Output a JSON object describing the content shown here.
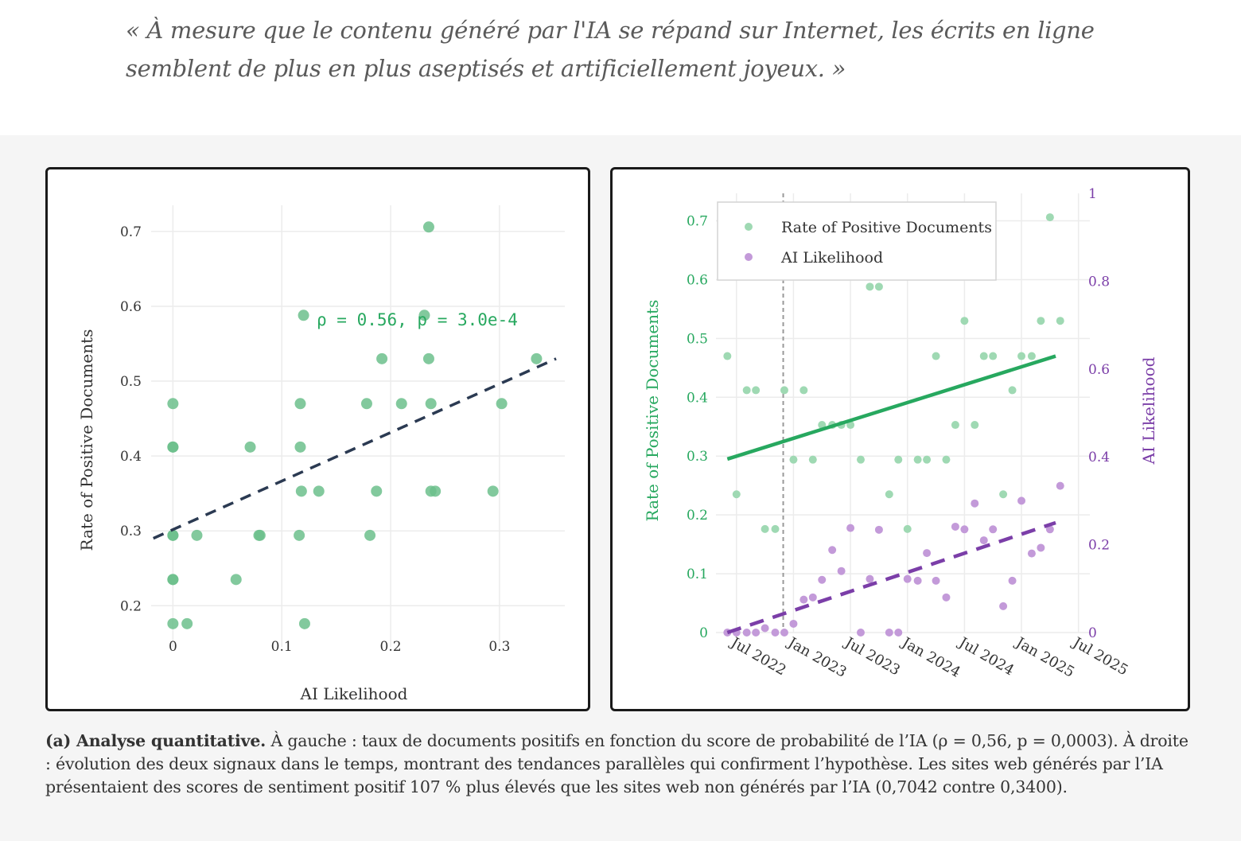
{
  "quote": "« À mesure que le contenu généré par l'IA se répand sur Internet, les écrits en ligne semblent de plus en plus aseptisés et artificiellement joyeux. »",
  "caption": {
    "label": "(a) Analyse quantitative.",
    "text": " À gauche : taux de documents positifs en fonction du score de probabilité de l’IA (ρ = 0,56, p = 0,0003). À droite : évolution des deux signaux dans le temps, montrant des tendances parallèles qui confirment l’hypothèse. Les sites web générés par l’IA présentaient des scores de sentiment positif 107 % plus élevés que les sites web non générés par l’IA (0,7042 contre 0,3400)."
  },
  "colors": {
    "green": "#6cc08c",
    "green_line": "#27a85f",
    "green_light": "#9fd9b3",
    "purple": "#c39ad9",
    "purple_line": "#7b3ea8",
    "dark_line": "#2b3a52",
    "grid": "#ececec"
  },
  "chart_data": [
    {
      "type": "scatter",
      "title": "",
      "xlabel": "AI Likelihood",
      "ylabel": "Rate of Positive Documents",
      "xlim": [
        -0.02,
        0.36
      ],
      "ylim": [
        0.145,
        0.735
      ],
      "xticks": [
        0,
        0.1,
        0.2,
        0.3
      ],
      "xtick_labels": [
        "0",
        "0.1",
        "0.2",
        "0.3"
      ],
      "yticks": [
        0.2,
        0.3,
        0.4,
        0.5,
        0.6,
        0.7
      ],
      "ytick_labels": [
        "0.2",
        "0.3",
        "0.4",
        "0.5",
        "0.6",
        "0.7"
      ],
      "annotation": "ρ = 0.56, p = 3.0e-4",
      "trendline": {
        "x": [
          -0.018,
          0.352
        ],
        "y": [
          0.29,
          0.53
        ]
      },
      "points": [
        [
          0,
          0.47
        ],
        [
          0,
          0.412
        ],
        [
          0,
          0.412
        ],
        [
          0,
          0.294
        ],
        [
          0,
          0.294
        ],
        [
          0,
          0.235
        ],
        [
          0,
          0.235
        ],
        [
          0,
          0.176
        ],
        [
          0.013,
          0.176
        ],
        [
          0.022,
          0.294
        ],
        [
          0.058,
          0.235
        ],
        [
          0.071,
          0.412
        ],
        [
          0.079,
          0.294
        ],
        [
          0.08,
          0.294
        ],
        [
          0.116,
          0.294
        ],
        [
          0.117,
          0.412
        ],
        [
          0.117,
          0.47
        ],
        [
          0.118,
          0.353
        ],
        [
          0.12,
          0.588
        ],
        [
          0.121,
          0.176
        ],
        [
          0.134,
          0.353
        ],
        [
          0.178,
          0.47
        ],
        [
          0.181,
          0.294
        ],
        [
          0.187,
          0.353
        ],
        [
          0.192,
          0.53
        ],
        [
          0.21,
          0.47
        ],
        [
          0.231,
          0.588
        ],
        [
          0.235,
          0.706
        ],
        [
          0.235,
          0.53
        ],
        [
          0.237,
          0.47
        ],
        [
          0.237,
          0.353
        ],
        [
          0.241,
          0.353
        ],
        [
          0.294,
          0.353
        ],
        [
          0.302,
          0.47
        ],
        [
          0.334,
          0.53
        ]
      ]
    },
    {
      "type": "scatter",
      "title": "",
      "xlabel": "",
      "ylabel": "Rate of Positive Documents",
      "y2label": "AI Likelihood",
      "xlim": [
        2022.32,
        2025.6
      ],
      "ylim": [
        0,
        0.7467
      ],
      "y2lim": [
        0,
        1
      ],
      "xticks": [
        2022.5,
        2023.0,
        2023.5,
        2024.0,
        2024.5,
        2025.0,
        2025.5
      ],
      "xtick_labels": [
        "Jul 2022",
        "Jan 2023",
        "Jul 2023",
        "Jan 2024",
        "Jul 2024",
        "Jan 2025",
        "Jul 2025"
      ],
      "yticks": [
        0,
        0.1,
        0.2,
        0.3,
        0.4,
        0.5,
        0.6,
        0.7
      ],
      "ytick_labels": [
        "0",
        "0.1",
        "0.2",
        "0.3",
        "0.4",
        "0.5",
        "0.6",
        "0.7"
      ],
      "y2ticks": [
        0,
        0.2,
        0.4,
        0.6,
        0.8,
        1
      ],
      "y2tick_labels": [
        "0",
        "0.2",
        "0.4",
        "0.6",
        "0.8",
        "1"
      ],
      "vline_x": 2022.91,
      "legend": {
        "position": "top-left",
        "items": [
          "Rate of Positive Documents",
          "AI Likelihood"
        ]
      },
      "series": [
        {
          "name": "Rate of Positive Documents",
          "axis": "left",
          "points": [
            [
              2022.42,
              0.47
            ],
            [
              2022.5,
              0.235
            ],
            [
              2022.59,
              0.412
            ],
            [
              2022.67,
              0.412
            ],
            [
              2022.75,
              0.176
            ],
            [
              2022.84,
              0.176
            ],
            [
              2022.92,
              0.412
            ],
            [
              2023.0,
              0.294
            ],
            [
              2023.09,
              0.412
            ],
            [
              2023.17,
              0.294
            ],
            [
              2023.25,
              0.353
            ],
            [
              2023.34,
              0.353
            ],
            [
              2023.42,
              0.353
            ],
            [
              2023.5,
              0.353
            ],
            [
              2023.59,
              0.294
            ],
            [
              2023.67,
              0.588
            ],
            [
              2023.75,
              0.588
            ],
            [
              2023.84,
              0.235
            ],
            [
              2023.92,
              0.294
            ],
            [
              2024.0,
              0.176
            ],
            [
              2024.09,
              0.294
            ],
            [
              2024.17,
              0.294
            ],
            [
              2024.25,
              0.47
            ],
            [
              2024.34,
              0.294
            ],
            [
              2024.42,
              0.353
            ],
            [
              2024.5,
              0.53
            ],
            [
              2024.59,
              0.353
            ],
            [
              2024.67,
              0.47
            ],
            [
              2024.75,
              0.47
            ],
            [
              2024.84,
              0.235
            ],
            [
              2024.92,
              0.412
            ],
            [
              2025.0,
              0.47
            ],
            [
              2025.09,
              0.47
            ],
            [
              2025.17,
              0.53
            ],
            [
              2025.25,
              0.706
            ],
            [
              2025.34,
              0.53
            ]
          ],
          "trend": {
            "x": [
              2022.42,
              2025.3
            ],
            "y": [
              0.295,
              0.47
            ]
          }
        },
        {
          "name": "AI Likelihood",
          "axis": "right",
          "points": [
            [
              2022.42,
              0
            ],
            [
              2022.5,
              0
            ],
            [
              2022.59,
              0
            ],
            [
              2022.67,
              0
            ],
            [
              2022.75,
              0.01
            ],
            [
              2022.84,
              0
            ],
            [
              2022.92,
              0
            ],
            [
              2023.0,
              0.02
            ],
            [
              2023.09,
              0.075
            ],
            [
              2023.17,
              0.08
            ],
            [
              2023.25,
              0.12
            ],
            [
              2023.34,
              0.188
            ],
            [
              2023.42,
              0.14
            ],
            [
              2023.5,
              0.238
            ],
            [
              2023.59,
              0
            ],
            [
              2023.67,
              0.122
            ],
            [
              2023.75,
              0.234
            ],
            [
              2023.84,
              0
            ],
            [
              2023.92,
              0
            ],
            [
              2024.0,
              0.122
            ],
            [
              2024.09,
              0.118
            ],
            [
              2024.17,
              0.181
            ],
            [
              2024.25,
              0.118
            ],
            [
              2024.34,
              0.08
            ],
            [
              2024.42,
              0.241
            ],
            [
              2024.5,
              0.235
            ],
            [
              2024.59,
              0.294
            ],
            [
              2024.67,
              0.21
            ],
            [
              2024.75,
              0.235
            ],
            [
              2024.84,
              0.06
            ],
            [
              2024.92,
              0.118
            ],
            [
              2025.0,
              0.3
            ],
            [
              2025.09,
              0.18
            ],
            [
              2025.17,
              0.193
            ],
            [
              2025.25,
              0.235
            ],
            [
              2025.34,
              0.334
            ]
          ],
          "trend": {
            "x": [
              2022.42,
              2025.3
            ],
            "y": [
              0.0,
              0.25
            ]
          }
        }
      ]
    }
  ]
}
